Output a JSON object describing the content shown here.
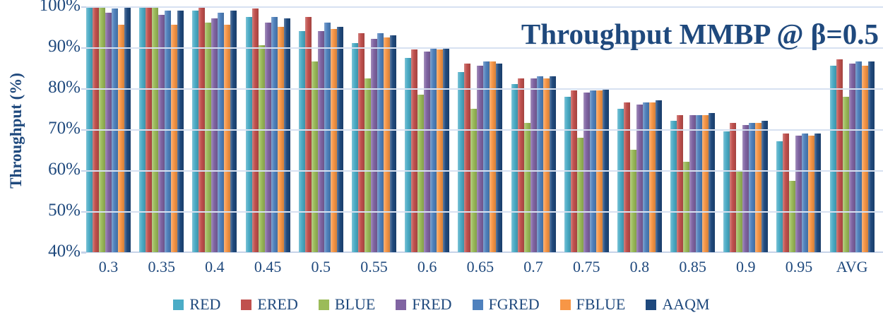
{
  "chart_data": {
    "type": "bar",
    "title": "Throughput MMBP @ β=0.5",
    "ylabel": "Throughput (%)",
    "xlabel": "",
    "ylim": [
      40,
      100
    ],
    "ytick_step": 10,
    "ytick_suffix": "%",
    "grid": true,
    "legend_position": "bottom",
    "categories": [
      "0.3",
      "0.35",
      "0.4",
      "0.45",
      "0.5",
      "0.55",
      "0.6",
      "0.65",
      "0.7",
      "0.75",
      "0.8",
      "0.85",
      "0.9",
      "0.95",
      "AVG"
    ],
    "series": [
      {
        "name": "RED",
        "color": "#4BACC6",
        "values": [
          100,
          100,
          99,
          97.5,
          94,
          91,
          87.5,
          84,
          81,
          78,
          75,
          72,
          69.5,
          67,
          85.5
        ]
      },
      {
        "name": "ERED",
        "color": "#C0504D",
        "values": [
          100,
          100,
          100,
          99.5,
          97.5,
          93.5,
          89.5,
          86,
          82.5,
          79.5,
          76.5,
          73.5,
          71.5,
          69,
          87
        ]
      },
      {
        "name": "BLUE",
        "color": "#9BBB59",
        "values": [
          100,
          100,
          96,
          90.5,
          86.5,
          82.5,
          78.5,
          75,
          71.5,
          68,
          65,
          62,
          60,
          57.5,
          78
        ]
      },
      {
        "name": "FRED",
        "color": "#8064A2",
        "values": [
          98.5,
          98,
          97,
          96,
          94,
          92,
          89,
          85.5,
          82.5,
          79,
          76,
          73.5,
          71,
          68.5,
          86
        ]
      },
      {
        "name": "FGRED",
        "color": "#4F81BD",
        "values": [
          99.5,
          99,
          98.5,
          97.5,
          96,
          93.5,
          90,
          86.5,
          83,
          79.5,
          76.5,
          73.5,
          71.5,
          69,
          86.5
        ]
      },
      {
        "name": "FBLUE",
        "color": "#F79646",
        "values": [
          95.5,
          95.5,
          95.5,
          95,
          94.5,
          92.5,
          89.5,
          86.5,
          82.5,
          79.5,
          76.5,
          73.5,
          71.5,
          68.5,
          85.5
        ]
      },
      {
        "name": "AAQM",
        "color": "#1F497D",
        "values": [
          100,
          99,
          99,
          97,
          95,
          93,
          90,
          86,
          83,
          80,
          77,
          74,
          72,
          69,
          86.5
        ]
      }
    ]
  },
  "colors": {
    "text": "#1F497D",
    "gridline": "#D7E1F1",
    "axis_line": "#C6D3E9",
    "background": "#FFFFFF"
  }
}
